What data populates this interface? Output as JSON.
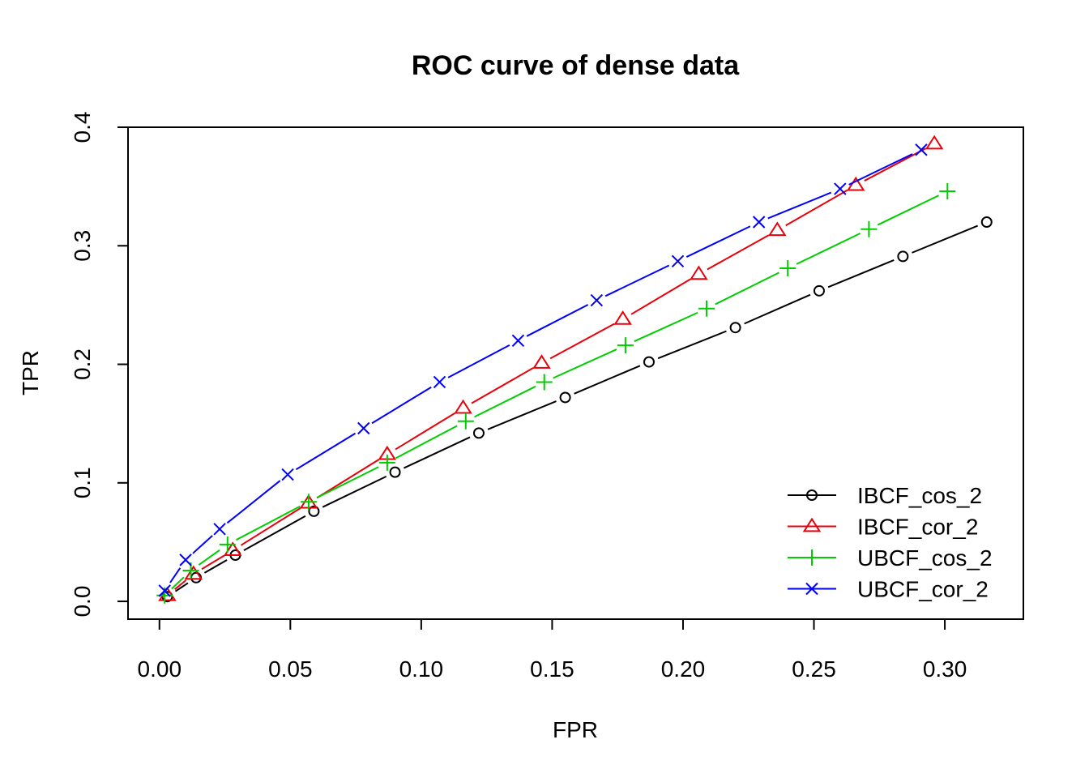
{
  "chart_data": {
    "type": "line",
    "title": "ROC curve of dense data",
    "xlabel": "FPR",
    "ylabel": "TPR",
    "xlim": [
      -0.012,
      0.33
    ],
    "ylim": [
      -0.015,
      0.4
    ],
    "x_ticks": [
      "0.00",
      "0.05",
      "0.10",
      "0.15",
      "0.20",
      "0.25",
      "0.30"
    ],
    "y_ticks": [
      "0.0",
      "0.1",
      "0.2",
      "0.3",
      "0.4"
    ],
    "grid": false,
    "legend_position": "bottom-right",
    "series": [
      {
        "name": "IBCF_cos_2",
        "color": "#000000",
        "marker": "circle",
        "x": [
          0.003,
          0.014,
          0.029,
          0.059,
          0.09,
          0.122,
          0.155,
          0.187,
          0.22,
          0.252,
          0.284,
          0.316
        ],
        "y": [
          0.004,
          0.02,
          0.039,
          0.076,
          0.109,
          0.142,
          0.172,
          0.202,
          0.231,
          0.262,
          0.291,
          0.32
        ]
      },
      {
        "name": "IBCF_cor_2",
        "color": "#e8000b",
        "marker": "triangle",
        "x": [
          0.003,
          0.013,
          0.028,
          0.057,
          0.087,
          0.116,
          0.146,
          0.177,
          0.206,
          0.236,
          0.266,
          0.296
        ],
        "y": [
          0.005,
          0.023,
          0.043,
          0.083,
          0.124,
          0.163,
          0.201,
          0.238,
          0.276,
          0.313,
          0.351,
          0.386
        ]
      },
      {
        "name": "UBCF_cos_2",
        "color": "#00cd00",
        "marker": "plus",
        "x": [
          0.002,
          0.012,
          0.026,
          0.057,
          0.087,
          0.117,
          0.147,
          0.178,
          0.209,
          0.24,
          0.271,
          0.301
        ],
        "y": [
          0.005,
          0.026,
          0.048,
          0.084,
          0.117,
          0.152,
          0.185,
          0.216,
          0.247,
          0.281,
          0.314,
          0.346
        ]
      },
      {
        "name": "UBCF_cor_2",
        "color": "#0000ff",
        "marker": "x",
        "x": [
          0.002,
          0.01,
          0.023,
          0.049,
          0.078,
          0.107,
          0.137,
          0.167,
          0.198,
          0.229,
          0.26,
          0.291
        ],
        "y": [
          0.009,
          0.035,
          0.061,
          0.107,
          0.146,
          0.185,
          0.22,
          0.254,
          0.287,
          0.32,
          0.348,
          0.381
        ]
      }
    ]
  }
}
